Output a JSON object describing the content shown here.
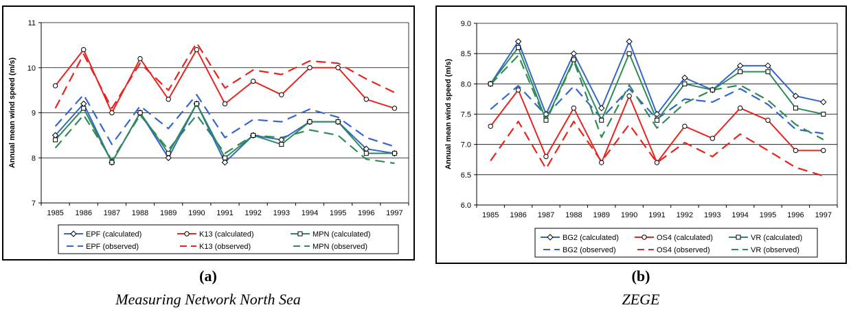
{
  "chart_data": [
    {
      "type": "line",
      "x": [
        "1985",
        "1986",
        "1987",
        "1988",
        "1989",
        "1990",
        "1991",
        "1992",
        "1993",
        "1994",
        "1995",
        "1996",
        "1997"
      ],
      "ylabel": "Annual mean wind speed (m/s)",
      "ylim": [
        7,
        11
      ],
      "yticks": [
        "7",
        "8",
        "9",
        "10",
        "11"
      ],
      "grid": "horizontal",
      "legend": "bottom",
      "series": [
        {
          "name": "EPF (calculated)",
          "style": "solid",
          "marker": "diamond",
          "color": "#3366cc",
          "values": [
            8.5,
            9.2,
            7.9,
            9.0,
            8.0,
            9.2,
            7.9,
            8.5,
            8.4,
            8.8,
            8.8,
            8.2,
            8.1
          ]
        },
        {
          "name": "K13 (calculated)",
          "style": "solid",
          "marker": "circle",
          "color": "#e8231c",
          "values": [
            9.6,
            10.4,
            9.0,
            10.2,
            9.3,
            10.4,
            9.2,
            9.7,
            9.4,
            10.0,
            10.0,
            9.3,
            9.1
          ]
        },
        {
          "name": "MPN (calculated)",
          "style": "solid",
          "marker": "square",
          "color": "#2e8b57",
          "values": [
            8.4,
            9.1,
            7.9,
            9.0,
            8.1,
            9.2,
            8.0,
            8.5,
            8.3,
            8.8,
            8.8,
            8.1,
            8.1
          ]
        },
        {
          "name": "EPF (observed)",
          "style": "dashed",
          "marker": "none",
          "color": "#3366cc",
          "values": [
            8.7,
            9.4,
            8.3,
            9.15,
            8.65,
            9.4,
            8.45,
            8.85,
            8.8,
            9.08,
            8.9,
            8.45,
            8.25
          ]
        },
        {
          "name": "K13 (observed)",
          "style": "dashed",
          "marker": "none",
          "color": "#e8231c",
          "values": [
            9.1,
            10.3,
            9.1,
            10.1,
            9.5,
            10.55,
            9.55,
            9.95,
            9.85,
            10.15,
            10.1,
            9.75,
            9.45
          ]
        },
        {
          "name": "MPN (observed)",
          "style": "dashed",
          "marker": "none",
          "color": "#2e8b57",
          "values": [
            8.22,
            8.95,
            7.95,
            8.95,
            8.18,
            8.95,
            8.1,
            8.5,
            8.45,
            8.62,
            8.5,
            7.97,
            7.88
          ]
        }
      ]
    },
    {
      "type": "line",
      "x": [
        "1985",
        "1986",
        "1987",
        "1988",
        "1989",
        "1990",
        "1991",
        "1992",
        "1993",
        "1994",
        "1995",
        "1996",
        "1997"
      ],
      "ylabel": "Annual mean wind speed (m/s)",
      "ylim": [
        6.0,
        9.0
      ],
      "yticks": [
        "6.0",
        "6.5",
        "7.0",
        "7.5",
        "8.0",
        "8.5",
        "9.0"
      ],
      "grid": "horizontal",
      "legend": "bottom",
      "series": [
        {
          "name": "BG2 (calculated)",
          "style": "solid",
          "marker": "diamond",
          "color": "#3366cc",
          "values": [
            8.0,
            8.7,
            7.5,
            8.5,
            7.6,
            8.7,
            7.5,
            8.1,
            7.9,
            8.3,
            8.3,
            7.8,
            7.7
          ]
        },
        {
          "name": "OS4 (calculated)",
          "style": "solid",
          "marker": "circle",
          "color": "#e8231c",
          "values": [
            7.3,
            7.9,
            6.8,
            7.6,
            6.7,
            7.8,
            6.7,
            7.3,
            7.1,
            7.6,
            7.4,
            6.9,
            6.9
          ]
        },
        {
          "name": "VR (calculated)",
          "style": "solid",
          "marker": "square",
          "color": "#2e8b57",
          "values": [
            8.0,
            8.6,
            7.4,
            8.4,
            7.4,
            8.5,
            7.4,
            8.0,
            7.9,
            8.2,
            8.2,
            7.6,
            7.5
          ]
        },
        {
          "name": "BG2 (observed)",
          "style": "dashed",
          "marker": "none",
          "color": "#3366cc",
          "values": [
            7.58,
            7.97,
            7.48,
            7.96,
            7.43,
            7.92,
            7.42,
            7.75,
            7.7,
            7.92,
            7.66,
            7.25,
            7.18
          ]
        },
        {
          "name": "OS4 (observed)",
          "style": "dashed",
          "marker": "none",
          "color": "#e8231c",
          "values": [
            6.73,
            7.38,
            6.6,
            7.38,
            6.72,
            7.33,
            6.7,
            7.03,
            6.8,
            7.17,
            6.9,
            6.62,
            6.48
          ]
        },
        {
          "name": "VR (observed)",
          "style": "dashed",
          "marker": "none",
          "color": "#2e8b57",
          "values": [
            7.99,
            8.47,
            7.38,
            8.38,
            7.12,
            7.98,
            7.27,
            7.68,
            7.9,
            7.98,
            7.73,
            7.33,
            7.08
          ]
        }
      ]
    }
  ],
  "panels": {
    "a": {
      "label": "(a)",
      "caption": "Measuring Network North Sea"
    },
    "b": {
      "label": "(b)",
      "caption": "ZEGE"
    }
  }
}
